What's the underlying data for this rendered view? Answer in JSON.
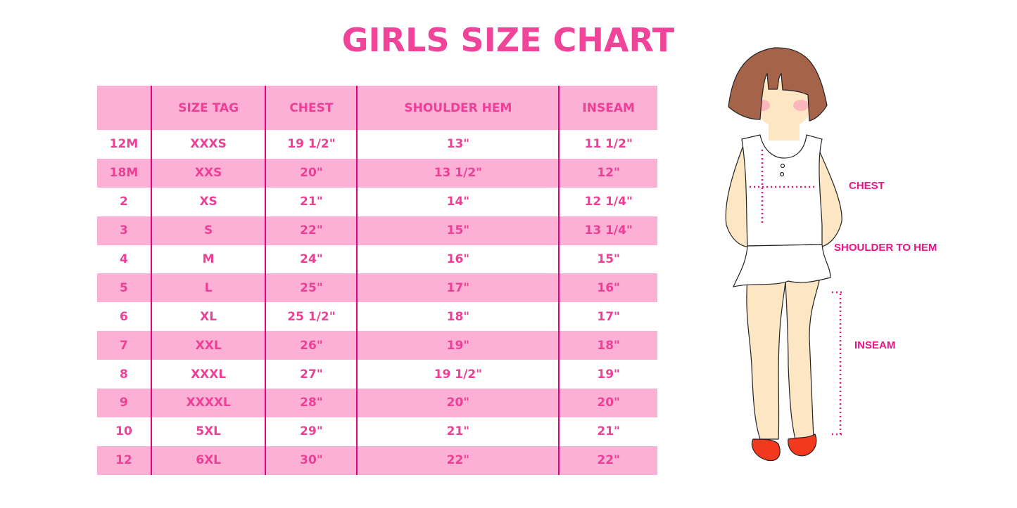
{
  "title": "GIRLS SIZE CHART",
  "table": {
    "headers": [
      "",
      "SIZE TAG",
      "CHEST",
      "SHOULDER HEM",
      "INSEAM"
    ],
    "rows": [
      [
        "12M",
        "XXXS",
        "19 1/2\"",
        "13\"",
        "11 1/2\""
      ],
      [
        "18M",
        "XXS",
        "20\"",
        "13 1/2\"",
        "12\""
      ],
      [
        "2",
        "XS",
        "21\"",
        "14\"",
        "12 1/4\""
      ],
      [
        "3",
        "S",
        "22\"",
        "15\"",
        "13 1/4\""
      ],
      [
        "4",
        "M",
        "24\"",
        "16\"",
        "15\""
      ],
      [
        "5",
        "L",
        "25\"",
        "17\"",
        "16\""
      ],
      [
        "6",
        "XL",
        "25 1/2\"",
        "18\"",
        "17\""
      ],
      [
        "7",
        "XXL",
        "26\"",
        "19\"",
        "18\""
      ],
      [
        "8",
        "XXXL",
        "27\"",
        "19 1/2\"",
        "19\""
      ],
      [
        "9",
        "XXXXL",
        "28\"",
        "20\"",
        "20\""
      ],
      [
        "10",
        "5XL",
        "29\"",
        "21\"",
        "21\""
      ],
      [
        "12",
        "6XL",
        "30\"",
        "22\"",
        "22\""
      ]
    ]
  },
  "figure": {
    "labels": {
      "chest": "CHEST",
      "shoulder_to_hem": "SHOULDER TO HEM",
      "inseam": "INSEAM"
    }
  },
  "colors": {
    "accent": "#ec3f95",
    "row_pink": "#fdb0d5",
    "divider": "#e4007c"
  }
}
